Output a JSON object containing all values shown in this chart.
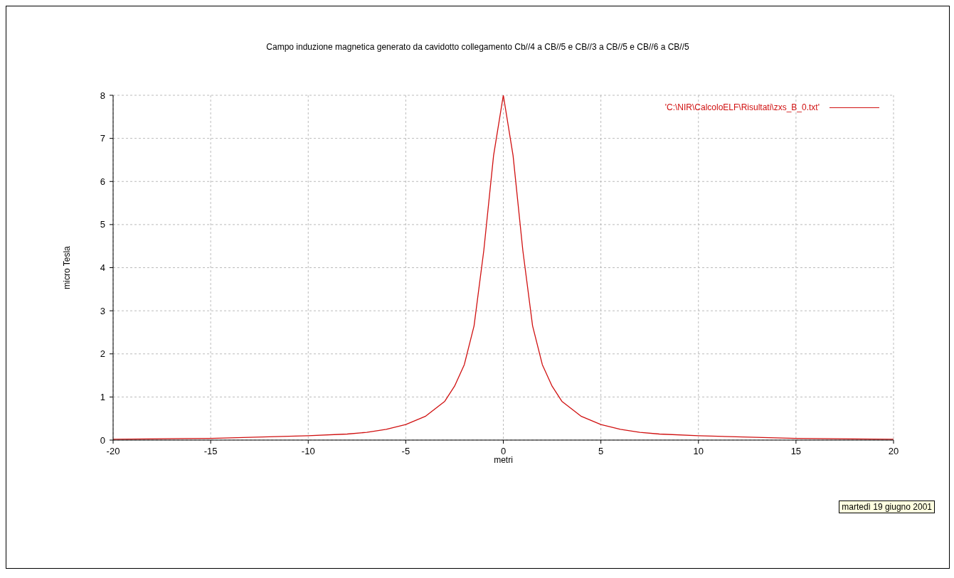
{
  "chart_data": {
    "type": "line",
    "title": "Campo induzione magnetica generato da cavidotto collegamento  Cb//4 a CB//5  e CB//3 a CB//5 e CB//6 a CB//5",
    "xlabel": "metri",
    "ylabel": "micro Tesla",
    "x": [
      -20,
      -15,
      -10,
      -8,
      -7,
      -6,
      -5,
      -4,
      -3,
      -2.5,
      -2,
      -1.5,
      -1,
      -0.5,
      0,
      0.5,
      1,
      1.5,
      2,
      2.5,
      3,
      4,
      5,
      6,
      7,
      8,
      10,
      15,
      20
    ],
    "series": [
      {
        "name": "'C:\\NIR\\CalcoloELF\\Risultati\\zxs_B_0.txt'",
        "color": "#d01010",
        "values": [
          0.02,
          0.04,
          0.1,
          0.14,
          0.18,
          0.25,
          0.36,
          0.55,
          0.9,
          1.25,
          1.75,
          2.65,
          4.4,
          6.6,
          8,
          6.6,
          4.4,
          2.65,
          1.75,
          1.25,
          0.9,
          0.55,
          0.36,
          0.25,
          0.18,
          0.14,
          0.1,
          0.04,
          0.02
        ]
      }
    ],
    "xlim": [
      -20,
      20
    ],
    "xticks": [
      -20,
      -15,
      -10,
      -5,
      0,
      5,
      10,
      15,
      20
    ],
    "ylim": [
      0,
      8
    ],
    "yticks": [
      0,
      1,
      2,
      3,
      4,
      5,
      6,
      7,
      8
    ],
    "grid": true,
    "legend": "top right",
    "marker": "none",
    "line_style": "solid",
    "annotations": [
      "martedì 19 giugno 2001"
    ]
  }
}
